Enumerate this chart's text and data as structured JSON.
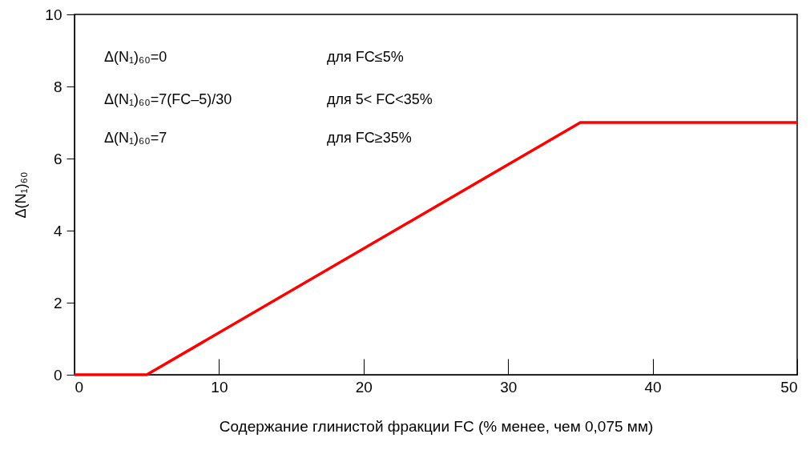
{
  "chart_data": {
    "type": "line",
    "xlabel": "Содержание глинистой фракции FC (% менее, чем 0,075 мм)",
    "ylabel": "Δ(N₁)₆₀",
    "x": [
      0,
      5,
      35,
      50
    ],
    "series": [
      {
        "color": "#ff0000",
        "values": [
          0,
          0,
          7,
          7
        ]
      }
    ],
    "xlim": [
      0,
      50
    ],
    "xticks": [
      0,
      10,
      20,
      30,
      40,
      50
    ],
    "ylim": [
      0,
      10
    ],
    "yticks": [
      0,
      2,
      4,
      6,
      8,
      10
    ],
    "grid": false,
    "marker": "none",
    "line_style": "solid",
    "annotations": [
      "Δ(N₁)₆₀=0",
      "для FC≤5%",
      "Δ(N₁)₆₀=7(FC–5)/30",
      "для 5< FC<35%",
      "Δ(N₁)₆₀=7",
      "для FC≥35%"
    ]
  }
}
